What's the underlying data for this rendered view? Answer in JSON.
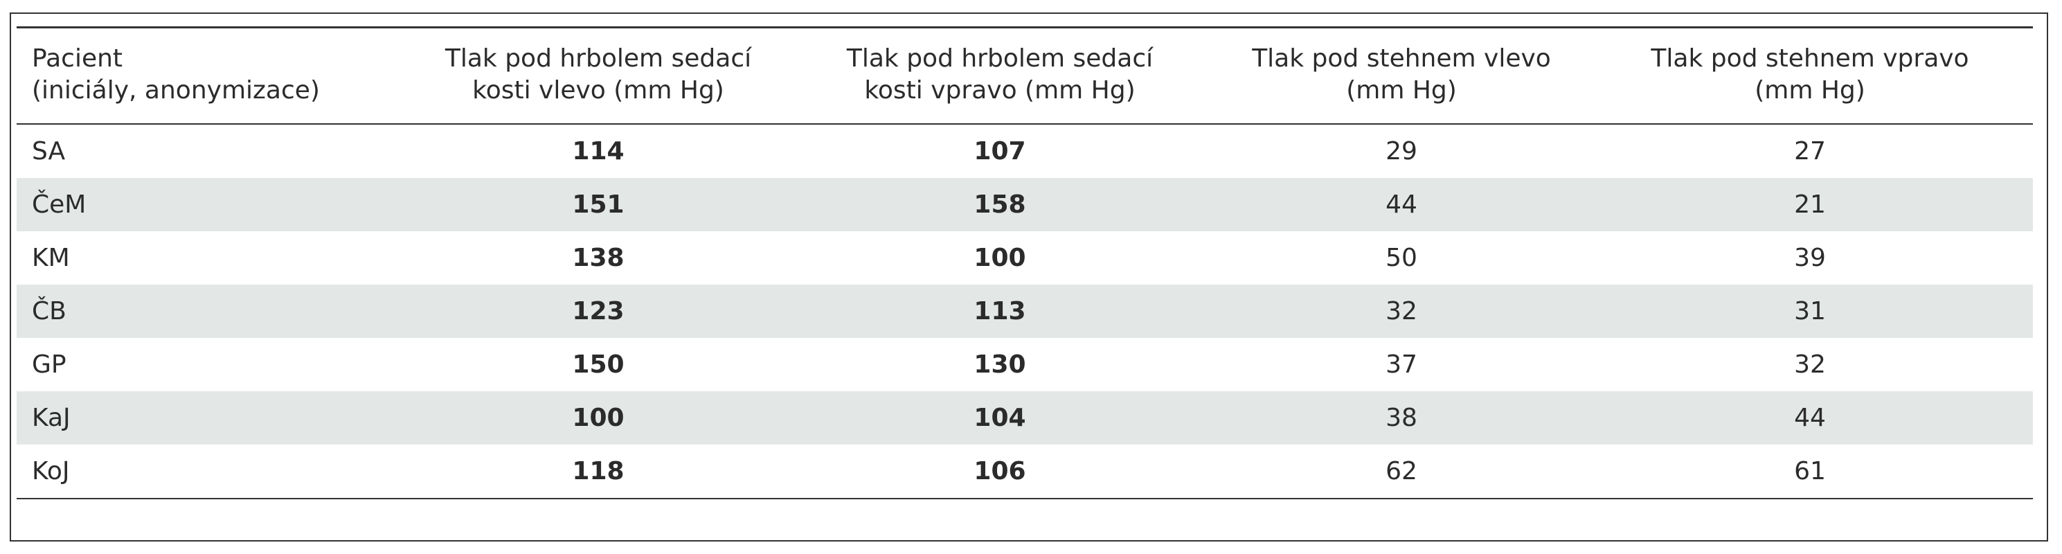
{
  "table": {
    "header": [
      [
        "Pacient",
        "(iniciály, anonymizace)"
      ],
      [
        "Tlak pod hrbolem sedací",
        "kosti vlevo (mm Hg)"
      ],
      [
        "Tlak pod hrbolem sedací",
        "kosti vpravo (mm Hg)"
      ],
      [
        "Tlak pod stehnem vlevo",
        "(mm Hg)"
      ],
      [
        "Tlak pod stehnem vpravo",
        "(mm Hg)"
      ]
    ],
    "rows": [
      [
        "SA",
        114,
        107,
        29,
        27
      ],
      [
        "ČeM",
        151,
        158,
        44,
        21
      ],
      [
        "KM",
        138,
        100,
        50,
        39
      ],
      [
        "ČB",
        123,
        113,
        32,
        31
      ],
      [
        "GP",
        150,
        130,
        37,
        32
      ],
      [
        "KaJ",
        100,
        104,
        38,
        44
      ],
      [
        "KoJ",
        118,
        106,
        62,
        61
      ]
    ]
  }
}
